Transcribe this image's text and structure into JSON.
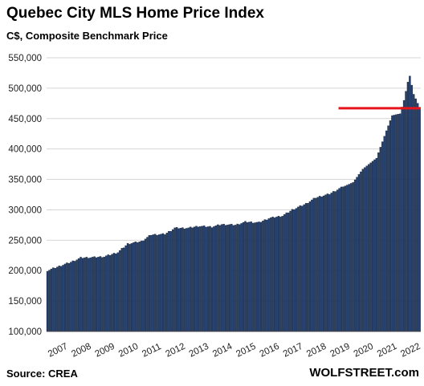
{
  "chart_data": {
    "type": "bar",
    "title": "Quebec City MLS Home Price Index",
    "subtitle": "C$, Composite Benchmark Price",
    "xlabel": "",
    "ylabel": "",
    "ylim": [
      100000,
      550000
    ],
    "yticks": [
      100000,
      150000,
      200000,
      250000,
      300000,
      350000,
      400000,
      450000,
      500000,
      550000
    ],
    "ytick_labels": [
      "100,000",
      "150,000",
      "200,000",
      "250,000",
      "300,000",
      "350,000",
      "400,000",
      "450,000",
      "500,000",
      "550,000"
    ],
    "xtick_labels": [
      "2007",
      "2008",
      "2009",
      "2010",
      "2011",
      "2012",
      "2013",
      "2014",
      "2015",
      "2016",
      "2017",
      "2018",
      "2019",
      "2020",
      "2021",
      "2022"
    ],
    "grid": true,
    "start": "2007-01",
    "frequency": "monthly",
    "anchors": [
      [
        "2007-01",
        200000
      ],
      [
        "2007-06",
        206000
      ],
      [
        "2008-01",
        214000
      ],
      [
        "2008-06",
        221000
      ],
      [
        "2009-01",
        222000
      ],
      [
        "2009-06",
        223000
      ],
      [
        "2010-01",
        230000
      ],
      [
        "2010-06",
        244000
      ],
      [
        "2011-01",
        248000
      ],
      [
        "2011-06",
        259000
      ],
      [
        "2012-01",
        260000
      ],
      [
        "2012-06",
        270000
      ],
      [
        "2013-01",
        270000
      ],
      [
        "2013-06",
        273000
      ],
      [
        "2014-01",
        272000
      ],
      [
        "2014-06",
        276000
      ],
      [
        "2015-01",
        275000
      ],
      [
        "2015-06",
        280000
      ],
      [
        "2016-01",
        279000
      ],
      [
        "2016-06",
        286000
      ],
      [
        "2017-01",
        290000
      ],
      [
        "2017-06",
        300000
      ],
      [
        "2018-01",
        310000
      ],
      [
        "2018-06",
        320000
      ],
      [
        "2019-01",
        326000
      ],
      [
        "2019-06",
        335000
      ],
      [
        "2020-01",
        345000
      ],
      [
        "2020-06",
        367000
      ],
      [
        "2021-01",
        385000
      ],
      [
        "2021-06",
        430000
      ],
      [
        "2021-09",
        455000
      ],
      [
        "2022-01",
        458000
      ],
      [
        "2022-03",
        480000
      ],
      [
        "2022-05",
        510000
      ],
      [
        "2022-06",
        520000
      ],
      [
        "2022-08",
        490000
      ],
      [
        "2022-11",
        468000
      ]
    ],
    "reference_line": {
      "y": 467000,
      "from": "2019-06",
      "color": "#e8141b"
    },
    "bar_color": "#243f6b",
    "bar_edge": "#0d1a2e"
  },
  "footer": {
    "source": "Source: CREA",
    "brand": "WOLFSTREET.com"
  }
}
